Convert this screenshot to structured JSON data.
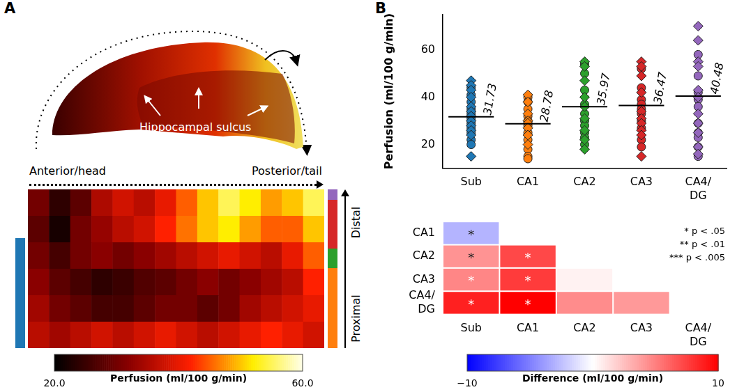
{
  "chart_data": [
    {
      "panel": "A",
      "type": "heatmap",
      "annotations": [
        "Hippocampal sulcus"
      ],
      "x_labels": [
        "Anterior/head",
        "Posterior/tail"
      ],
      "y_labels": [
        "Distal",
        "Proximal"
      ],
      "tick_labels": false,
      "cells": [
        [
          30,
          24,
          28,
          35,
          38,
          36,
          40,
          45,
          50,
          55,
          52,
          48,
          50,
          55
        ],
        [
          28,
          22,
          30,
          33,
          36,
          38,
          42,
          46,
          50,
          52,
          48,
          45,
          45,
          50
        ],
        [
          30,
          26,
          30,
          32,
          30,
          32,
          34,
          36,
          38,
          40,
          38,
          36,
          40,
          45
        ],
        [
          32,
          28,
          26,
          24,
          25,
          27,
          28,
          30,
          32,
          30,
          32,
          34,
          36,
          42
        ],
        [
          34,
          30,
          28,
          26,
          26,
          28,
          30,
          30,
          28,
          30,
          34,
          36,
          38,
          40
        ],
        [
          36,
          34,
          36,
          38,
          36,
          38,
          40,
          38,
          36,
          38,
          40,
          42,
          40,
          38
        ]
      ],
      "colorbar": {
        "title": "Perfusion (ml/100 g/min)",
        "range": [
          20,
          60
        ],
        "ticks": [
          {
            "value": 20,
            "label": "20.0"
          },
          {
            "value": 60,
            "label": "60.0"
          }
        ]
      }
    },
    {
      "panel": "B",
      "type": "strip",
      "categories": [
        "Sub",
        "CA1",
        "CA2",
        "CA3",
        "CA4/DG"
      ],
      "colors": [
        "#1f77b4",
        "#ff7f0e",
        "#2ca02c",
        "#d62728",
        "#9467bd"
      ],
      "y_label": "Perfusion (ml/100 g/min)",
      "ylim": [
        10,
        75
      ],
      "yticks": [
        20,
        40,
        60
      ],
      "grid": false,
      "series": [
        {
          "marker": "diamond",
          "values": [
            [
              47,
              45,
              43,
              40,
              36,
              34,
              32,
              30,
              28,
              26,
              24,
              15
            ],
            [
              41,
              38,
              33,
              30,
              29,
              27,
              24,
              20
            ],
            [
              55,
              53,
              47,
              40,
              36,
              31,
              26,
              22,
              18
            ],
            [
              55,
              53,
              49,
              42,
              34,
              31,
              29,
              26,
              24,
              15
            ],
            [
              70,
              64,
              55,
              53,
              43,
              40,
              33,
              29,
              25,
              19,
              16
            ]
          ]
        },
        {
          "marker": "circle",
          "values": [
            [
              44,
              41,
              38,
              35,
              33,
              31,
              29,
              27,
              25,
              22,
              20
            ],
            [
              40,
              38,
              35,
              32,
              30,
              28,
              25,
              22,
              18,
              15,
              14
            ],
            [
              54,
              50,
              43,
              37,
              33,
              30,
              28,
              25,
              23,
              20
            ],
            [
              52,
              44,
              39,
              37,
              35,
              33,
              30,
              27,
              22,
              19
            ],
            [
              58,
              49,
              42,
              39,
              36,
              29,
              25,
              23,
              19,
              15
            ]
          ]
        }
      ],
      "medians": [
        31.73,
        28.78,
        35.97,
        36.47,
        40.48
      ],
      "data_labels": true
    },
    {
      "type": "heatmap",
      "rows": [
        "CA1",
        "CA2",
        "CA3",
        "CA4/DG"
      ],
      "columns": [
        "Sub",
        "CA1",
        "CA2",
        "CA3",
        "CA4/DG"
      ],
      "cells": [
        [
          -2.95,
          null,
          null,
          null,
          null
        ],
        [
          4.24,
          7.19,
          null,
          null,
          null
        ],
        [
          4.74,
          7.69,
          0.5,
          null,
          null
        ],
        [
          8.75,
          11.7,
          4.51,
          4.01,
          null
        ]
      ],
      "significance": [
        [
          "*",
          null,
          null,
          null,
          null
        ],
        [
          "*",
          "*",
          null,
          null,
          null
        ],
        [
          "*",
          "*",
          null,
          null,
          null
        ],
        [
          "*",
          "*",
          null,
          null,
          null
        ]
      ],
      "significance_legend": [
        "* p < .05",
        "** p < .01",
        "*** p < .005"
      ],
      "colorbar": {
        "title": "Difference (ml/100 g/min)",
        "range": [
          -10,
          10
        ],
        "ticks": [
          {
            "value": -10,
            "label": "−10"
          },
          {
            "value": 10,
            "label": "10"
          }
        ]
      }
    }
  ]
}
